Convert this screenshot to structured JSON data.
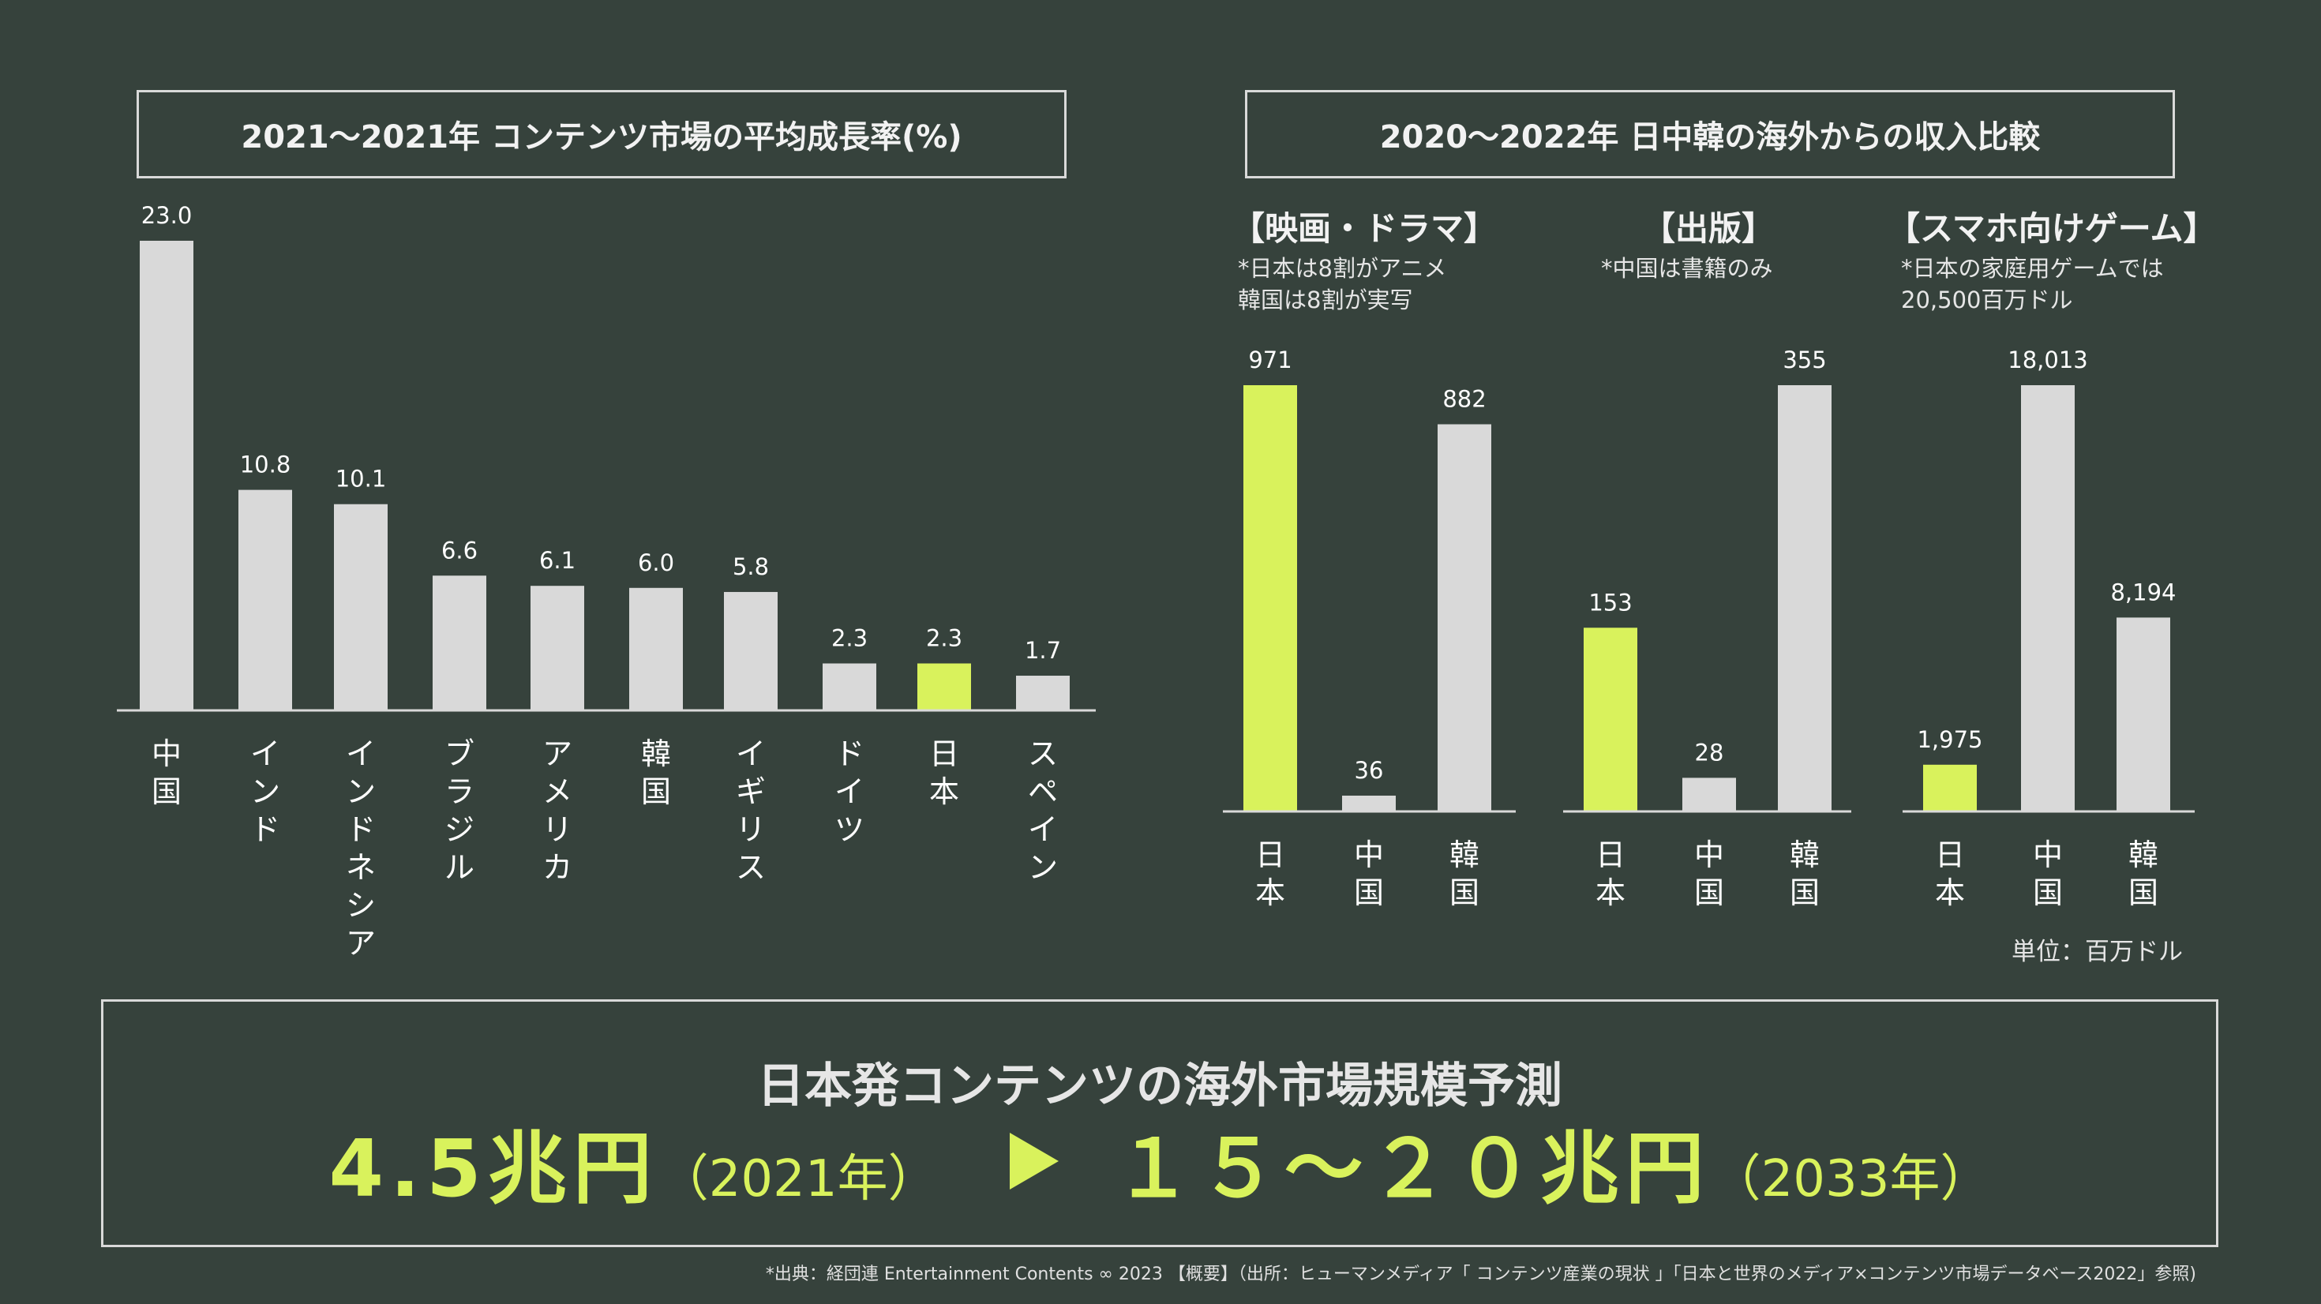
{
  "left_title": "2021〜2021年 コンテンツ市場の平均成長率(%)",
  "right_title": "2020〜2022年 日中韓の海外からの収入比較",
  "chart_data": [
    {
      "type": "bar",
      "title": "2021〜2021年 コンテンツ市場の平均成長率(%)",
      "categories": [
        "中国",
        "インド",
        "インドネシア",
        "ブラジル",
        "アメリカ",
        "韓国",
        "イギリス",
        "ドイツ",
        "日本",
        "スペイン"
      ],
      "values": [
        23.0,
        10.8,
        10.1,
        6.6,
        6.1,
        6.0,
        5.8,
        2.3,
        2.3,
        1.7
      ],
      "value_labels": [
        "23.0",
        "10.8",
        "10.1",
        "6.6",
        "6.1",
        "6.0",
        "5.8",
        "2.3",
        "2.3",
        "1.7"
      ],
      "highlight_category": "日本",
      "ylim": [
        0,
        23
      ],
      "grid": false
    },
    {
      "type": "bar",
      "title": "2020〜2022年 日中韓の海外からの収入比較",
      "unit": "単位：百万ドル",
      "groups": [
        {
          "title": "【映画・ドラマ】",
          "note": "*日本は8割がアニメ\n 韓国は8割が実写",
          "categories": [
            "日本",
            "中国",
            "韓国"
          ],
          "values": [
            971,
            36,
            882
          ],
          "value_labels": [
            "971",
            "36",
            "882"
          ],
          "ylim": [
            0,
            971
          ]
        },
        {
          "title": "【出版】",
          "note": "*中国は書籍のみ",
          "categories": [
            "日本",
            "中国",
            "韓国"
          ],
          "values": [
            153,
            28,
            355
          ],
          "value_labels": [
            "153",
            "28",
            "355"
          ],
          "ylim": [
            0,
            355
          ]
        },
        {
          "title": "【スマホ向けゲーム】",
          "note": "*日本の家庭用ゲームでは\n20,500百万ドル",
          "categories": [
            "日本",
            "中国",
            "韓国"
          ],
          "values": [
            1975,
            18013,
            8194
          ],
          "value_labels": [
            "1,975",
            "18,013",
            "8,194"
          ],
          "ylim": [
            0,
            18013
          ]
        }
      ],
      "highlight_category": "日本",
      "grid": false
    }
  ],
  "forecast": {
    "title": "日本発コンテンツの海外市場規模予測",
    "from_value": "4.5兆円",
    "from_year": "（2021年）",
    "to_value": "１５〜２０兆円",
    "to_year": "（2033年）"
  },
  "source": "*出典：経団連 Entertainment Contents ∞ 2023 【概要】（出所：ヒューマンメディア「 コンテンツ産業の現状 」「日本と世界のメディア×コンテンツ市場データベース2022」参照)",
  "colors": {
    "background": "#36423c",
    "bar": "#d9d9d9",
    "highlight": "#d9f25c",
    "text": "#ffffff"
  }
}
